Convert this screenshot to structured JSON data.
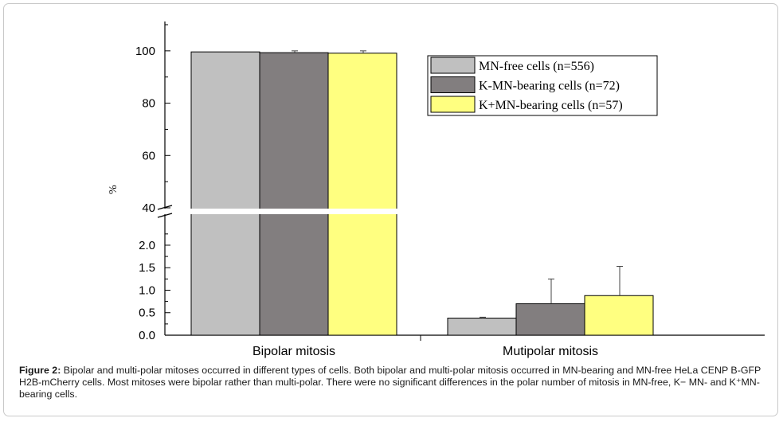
{
  "chart_data": {
    "type": "bar",
    "title": "",
    "xlabel": "",
    "ylabel": "%",
    "categories": [
      "Bipolar mitosis",
      "Mutipolar mitosis"
    ],
    "series": [
      {
        "name": "MN-free cells (n=556)",
        "color": "#c0c0c0",
        "values": [
          99.6,
          0.38
        ],
        "errors": [
          0.0,
          0.02
        ]
      },
      {
        "name": "K-MN-bearing cells (n=72)",
        "color": "#827e7f",
        "values": [
          99.3,
          0.7
        ],
        "errors": [
          0.7,
          0.55
        ]
      },
      {
        "name": "K+MN-bearing cells (n=57)",
        "color": "#ffff80",
        "values": [
          99.1,
          0.88
        ],
        "errors": [
          0.9,
          0.65
        ]
      }
    ],
    "axis_break": {
      "lower": [
        0,
        2.3
      ],
      "upper": [
        40,
        110
      ]
    },
    "lower_ticks": [
      "0.0",
      "0.5",
      "1.0",
      "1.5",
      "2.0"
    ],
    "upper_ticks": [
      "40",
      "60",
      "80",
      "100"
    ],
    "legend_position": "top-right"
  },
  "caption": {
    "label": "Figure 2:",
    "text": " Bipolar and multi-polar mitoses occurred in different types of cells. Both bipolar and multi-polar mitosis occurred in MN-bearing and MN-free HeLa CENP B-GFP H2B-mCherry cells. Most mitoses were bipolar rather than multi-polar. There were no significant differences in the polar number of mitosis in MN-free, K− MN- and K⁺MN-bearing cells."
  }
}
